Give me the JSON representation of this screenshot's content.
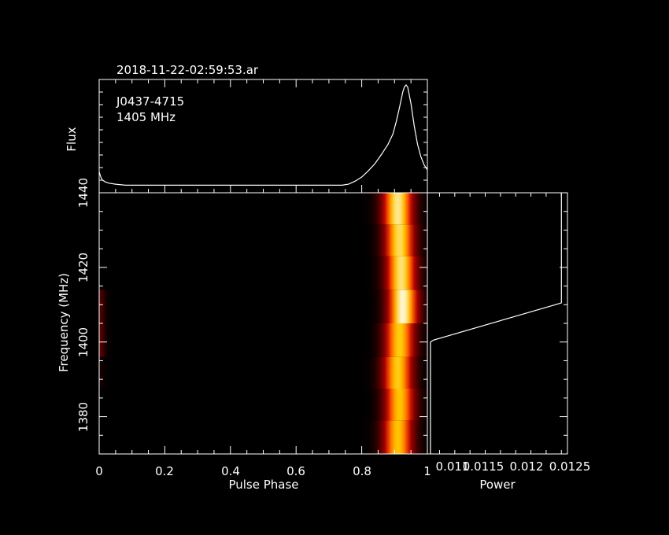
{
  "title": "2018-11-22-02:59:53.ar",
  "source_name": "J0437-4715",
  "frequency_label": "1405 MHz",
  "colors": {
    "background": "#000000",
    "axes": "#ffffff",
    "colormap": [
      "#000000",
      "#5a0000",
      "#b40000",
      "#ff5a00",
      "#ffc800",
      "#ffffff"
    ]
  },
  "chart_data": [
    {
      "type": "line",
      "name": "profile",
      "ylabel": "Flux",
      "xlim": [
        0,
        1
      ],
      "ylim": [
        0,
        1
      ],
      "x": [
        0.0,
        0.005,
        0.01,
        0.02,
        0.03,
        0.05,
        0.08,
        0.2,
        0.5,
        0.7,
        0.74,
        0.76,
        0.78,
        0.8,
        0.82,
        0.84,
        0.86,
        0.88,
        0.895,
        0.905,
        0.915,
        0.925,
        0.93,
        0.935,
        0.94,
        0.95,
        0.96,
        0.97,
        0.98,
        0.99,
        1.0
      ],
      "values": [
        0.15,
        0.1,
        0.07,
        0.05,
        0.04,
        0.03,
        0.02,
        0.02,
        0.02,
        0.02,
        0.02,
        0.03,
        0.06,
        0.1,
        0.16,
        0.23,
        0.32,
        0.42,
        0.52,
        0.64,
        0.78,
        0.93,
        0.98,
        1.0,
        0.98,
        0.82,
        0.6,
        0.42,
        0.3,
        0.22,
        0.17
      ]
    },
    {
      "type": "heatmap",
      "name": "phase-frequency",
      "xlabel": "Pulse Phase",
      "ylabel": "Frequency (MHz)",
      "xlim": [
        0,
        1
      ],
      "ylim": [
        1370,
        1440
      ],
      "x_ticks": [
        "0",
        "0.2",
        "0.4",
        "0.6",
        "0.8",
        "1"
      ],
      "y_ticks": [
        "1380",
        "1400",
        "1420",
        "1440"
      ],
      "channels": [
        {
          "flo": 1370,
          "fhi": 1379,
          "center": 0.91,
          "peak": 0.8,
          "faint": 0.0
        },
        {
          "flo": 1379,
          "fhi": 1387.5,
          "center": 0.915,
          "peak": 0.8,
          "faint": 0.0
        },
        {
          "flo": 1387.5,
          "fhi": 1396,
          "center": 0.91,
          "peak": 0.82,
          "faint": 0.05
        },
        {
          "flo": 1396,
          "fhi": 1405,
          "center": 0.915,
          "peak": 0.82,
          "faint": 0.22
        },
        {
          "flo": 1405,
          "fhi": 1414,
          "center": 0.925,
          "peak": 0.97,
          "faint": 0.2
        },
        {
          "flo": 1414,
          "fhi": 1423,
          "center": 0.92,
          "peak": 0.9,
          "faint": 0.0
        },
        {
          "flo": 1423,
          "fhi": 1431.5,
          "center": 0.915,
          "peak": 0.88,
          "faint": 0.0
        },
        {
          "flo": 1431.5,
          "fhi": 1440,
          "center": 0.91,
          "peak": 0.92,
          "faint": 0.0
        }
      ]
    },
    {
      "type": "line",
      "name": "power-spectrum",
      "xlabel": "Power",
      "x_tick_labels": [
        "0.011",
        "0.0115",
        "0.012",
        "0.0125"
      ],
      "xlim": [
        0.0103,
        0.0126
      ],
      "ylim": [
        1370,
        1440
      ],
      "freq": [
        1370,
        1400,
        1400.5,
        1410,
        1410.5,
        1440
      ],
      "power": [
        0.01035,
        0.01035,
        0.0104,
        0.0124,
        0.0125,
        0.0125
      ]
    }
  ]
}
